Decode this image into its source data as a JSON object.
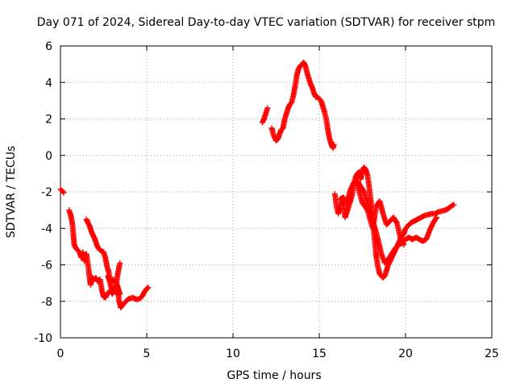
{
  "chart_data": {
    "type": "scatter",
    "title": "Day 071 of 2024, Sidereal Day-to-day VTEC variation (SDTVAR) for receiver stpm",
    "xlabel": "GPS time / hours",
    "ylabel": "SDTVAR / TECUs",
    "xlim": [
      0,
      25
    ],
    "ylim": [
      -10,
      6
    ],
    "xticks": [
      0,
      5,
      10,
      15,
      20,
      25
    ],
    "yticks": [
      -10,
      -8,
      -6,
      -4,
      -2,
      0,
      2,
      4,
      6
    ],
    "grid": true,
    "marker": "plus",
    "color": "#ff0000",
    "series": [
      {
        "name": "SDTVAR",
        "segments": [
          [
            [
              0.0,
              -1.85
            ],
            [
              0.1,
              -1.95
            ],
            [
              0.2,
              -2.05
            ]
          ],
          [
            [
              0.5,
              -3.0
            ],
            [
              0.6,
              -3.3
            ],
            [
              0.7,
              -3.8
            ],
            [
              0.75,
              -4.4
            ],
            [
              0.8,
              -4.9
            ],
            [
              0.9,
              -5.1
            ],
            [
              1.0,
              -5.2
            ],
            [
              1.1,
              -5.3
            ],
            [
              1.2,
              -5.6
            ],
            [
              1.3,
              -5.3
            ],
            [
              1.4,
              -5.8
            ],
            [
              1.5,
              -5.4
            ],
            [
              1.6,
              -6.0
            ],
            [
              1.7,
              -6.8
            ],
            [
              1.75,
              -7.1
            ],
            [
              1.85,
              -6.7
            ],
            [
              1.95,
              -6.8
            ],
            [
              2.05,
              -6.7
            ],
            [
              2.15,
              -6.9
            ],
            [
              2.3,
              -6.8
            ],
            [
              2.4,
              -7.4
            ],
            [
              2.5,
              -7.75
            ],
            [
              2.6,
              -7.8
            ],
            [
              2.7,
              -7.6
            ],
            [
              2.8,
              -7.5
            ],
            [
              2.9,
              -7.4
            ],
            [
              3.0,
              -7.6
            ],
            [
              3.1,
              -7.3
            ],
            [
              3.2,
              -7.5
            ],
            [
              3.3,
              -7.2
            ],
            [
              3.4,
              -8.0
            ],
            [
              3.5,
              -8.35
            ],
            [
              3.6,
              -8.2
            ],
            [
              3.7,
              -8.1
            ],
            [
              3.8,
              -8.0
            ],
            [
              3.9,
              -7.9
            ],
            [
              4.0,
              -7.85
            ],
            [
              4.2,
              -7.8
            ],
            [
              4.4,
              -7.9
            ],
            [
              4.6,
              -7.85
            ],
            [
              4.75,
              -7.7
            ],
            [
              4.85,
              -7.5
            ],
            [
              5.0,
              -7.3
            ],
            [
              5.1,
              -7.25
            ]
          ],
          [
            [
              1.5,
              -3.5
            ],
            [
              1.6,
              -3.7
            ],
            [
              1.7,
              -3.9
            ],
            [
              1.8,
              -4.2
            ],
            [
              1.9,
              -4.4
            ],
            [
              2.0,
              -4.6
            ],
            [
              2.1,
              -4.9
            ],
            [
              2.2,
              -5.1
            ],
            [
              2.3,
              -5.2
            ],
            [
              2.4,
              -5.25
            ],
            [
              2.5,
              -5.3
            ],
            [
              2.6,
              -5.6
            ],
            [
              2.7,
              -6.1
            ],
            [
              2.8,
              -6.4
            ],
            [
              2.9,
              -7.1
            ],
            [
              3.0,
              -7.4
            ],
            [
              3.1,
              -7.5
            ],
            [
              3.2,
              -7.4
            ],
            [
              3.3,
              -6.6
            ],
            [
              3.4,
              -6.1
            ],
            [
              3.45,
              -5.9
            ]
          ],
          [
            [
              2.75,
              -6.6
            ],
            [
              2.85,
              -6.9
            ],
            [
              2.95,
              -7.0
            ],
            [
              3.05,
              -6.8
            ],
            [
              3.15,
              -6.9
            ],
            [
              3.25,
              -7.0
            ],
            [
              3.35,
              -7.3
            ],
            [
              3.45,
              -7.6
            ]
          ],
          [
            [
              11.7,
              1.8
            ],
            [
              11.8,
              2.0
            ],
            [
              11.9,
              2.3
            ],
            [
              12.0,
              2.6
            ]
          ],
          [
            [
              12.25,
              1.5
            ],
            [
              12.35,
              1.1
            ],
            [
              12.5,
              0.8
            ],
            [
              12.6,
              0.9
            ],
            [
              12.7,
              1.2
            ],
            [
              12.8,
              1.4
            ],
            [
              12.9,
              1.5
            ],
            [
              13.0,
              2.0
            ],
            [
              13.1,
              2.3
            ],
            [
              13.2,
              2.6
            ],
            [
              13.3,
              2.8
            ],
            [
              13.4,
              2.9
            ],
            [
              13.5,
              3.3
            ],
            [
              13.6,
              3.8
            ],
            [
              13.7,
              4.4
            ],
            [
              13.8,
              4.75
            ],
            [
              13.9,
              4.9
            ],
            [
              14.0,
              5.0
            ],
            [
              14.1,
              5.1
            ],
            [
              14.2,
              4.9
            ],
            [
              14.3,
              4.5
            ],
            [
              14.4,
              4.2
            ],
            [
              14.5,
              3.9
            ],
            [
              14.6,
              3.7
            ],
            [
              14.7,
              3.4
            ],
            [
              14.8,
              3.2
            ],
            [
              14.9,
              3.2
            ],
            [
              15.0,
              3.1
            ],
            [
              15.1,
              3.0
            ],
            [
              15.2,
              2.7
            ],
            [
              15.3,
              2.4
            ],
            [
              15.4,
              2.0
            ],
            [
              15.5,
              1.4
            ],
            [
              15.6,
              0.9
            ],
            [
              15.7,
              0.6
            ],
            [
              15.8,
              0.4
            ],
            [
              15.85,
              0.6
            ]
          ],
          [
            [
              15.9,
              -2.1
            ],
            [
              16.0,
              -2.8
            ],
            [
              16.1,
              -3.2
            ],
            [
              16.2,
              -2.9
            ],
            [
              16.3,
              -2.5
            ],
            [
              16.4,
              -2.7
            ],
            [
              16.5,
              -3.4
            ],
            [
              16.6,
              -3.1
            ],
            [
              16.7,
              -2.8
            ],
            [
              16.8,
              -2.5
            ],
            [
              16.9,
              -2.2
            ],
            [
              17.0,
              -1.6
            ],
            [
              17.1,
              -1.2
            ],
            [
              17.2,
              -1.0
            ],
            [
              17.3,
              -0.9
            ],
            [
              17.4,
              -1.3
            ],
            [
              17.5,
              -0.8
            ],
            [
              17.6,
              -0.65
            ],
            [
              17.7,
              -0.8
            ],
            [
              17.8,
              -1.1
            ],
            [
              17.9,
              -1.8
            ],
            [
              18.0,
              -2.6
            ],
            [
              18.1,
              -3.6
            ],
            [
              18.2,
              -4.5
            ],
            [
              18.3,
              -5.5
            ],
            [
              18.4,
              -6.1
            ],
            [
              18.5,
              -6.5
            ],
            [
              18.6,
              -6.6
            ],
            [
              18.7,
              -6.7
            ],
            [
              18.8,
              -6.6
            ],
            [
              18.9,
              -6.3
            ],
            [
              19.0,
              -6.0
            ],
            [
              19.1,
              -5.8
            ],
            [
              19.2,
              -5.6
            ],
            [
              19.3,
              -5.4
            ],
            [
              19.4,
              -5.2
            ],
            [
              19.5,
              -5.0
            ],
            [
              19.6,
              -4.8
            ],
            [
              19.7,
              -4.6
            ],
            [
              19.8,
              -4.4
            ],
            [
              19.9,
              -4.3
            ],
            [
              20.0,
              -4.0
            ],
            [
              20.1,
              -3.9
            ],
            [
              20.3,
              -3.7
            ],
            [
              20.5,
              -3.6
            ],
            [
              20.7,
              -3.5
            ],
            [
              20.9,
              -3.4
            ],
            [
              21.1,
              -3.3
            ],
            [
              21.3,
              -3.25
            ],
            [
              21.5,
              -3.2
            ],
            [
              21.7,
              -3.2
            ],
            [
              21.9,
              -3.1
            ],
            [
              22.1,
              -3.05
            ],
            [
              22.3,
              -3.0
            ],
            [
              22.5,
              -2.9
            ],
            [
              22.7,
              -2.75
            ],
            [
              22.8,
              -2.7
            ]
          ],
          [
            [
              16.2,
              -2.4
            ],
            [
              16.4,
              -2.3
            ],
            [
              16.6,
              -2.6
            ],
            [
              16.8,
              -1.9
            ],
            [
              17.0,
              -1.5
            ],
            [
              17.2,
              -1.4
            ],
            [
              17.4,
              -1.7
            ],
            [
              17.6,
              -2.0
            ],
            [
              17.8,
              -2.6
            ],
            [
              18.0,
              -3.3
            ],
            [
              18.2,
              -3.9
            ],
            [
              18.4,
              -4.6
            ],
            [
              18.6,
              -5.4
            ],
            [
              18.8,
              -5.9
            ],
            [
              19.0,
              -5.7
            ],
            [
              19.2,
              -5.4
            ],
            [
              19.4,
              -5.1
            ],
            [
              19.6,
              -4.9
            ],
            [
              19.8,
              -4.8
            ],
            [
              20.0,
              -4.6
            ],
            [
              20.2,
              -4.5
            ],
            [
              20.4,
              -4.6
            ],
            [
              20.6,
              -4.5
            ],
            [
              20.8,
              -4.6
            ],
            [
              21.0,
              -4.7
            ],
            [
              21.2,
              -4.6
            ],
            [
              21.4,
              -4.1
            ],
            [
              21.6,
              -3.7
            ],
            [
              21.8,
              -3.4
            ]
          ],
          [
            [
              17.2,
              -1.6
            ],
            [
              17.5,
              -2.6
            ],
            [
              17.8,
              -3.0
            ],
            [
              18.1,
              -4.0
            ],
            [
              18.3,
              -2.8
            ],
            [
              18.5,
              -2.5
            ],
            [
              18.7,
              -3.2
            ],
            [
              18.9,
              -3.8
            ],
            [
              19.1,
              -3.6
            ],
            [
              19.3,
              -3.4
            ],
            [
              19.5,
              -3.7
            ],
            [
              19.7,
              -4.5
            ],
            [
              19.9,
              -4.9
            ]
          ]
        ]
      }
    ]
  }
}
